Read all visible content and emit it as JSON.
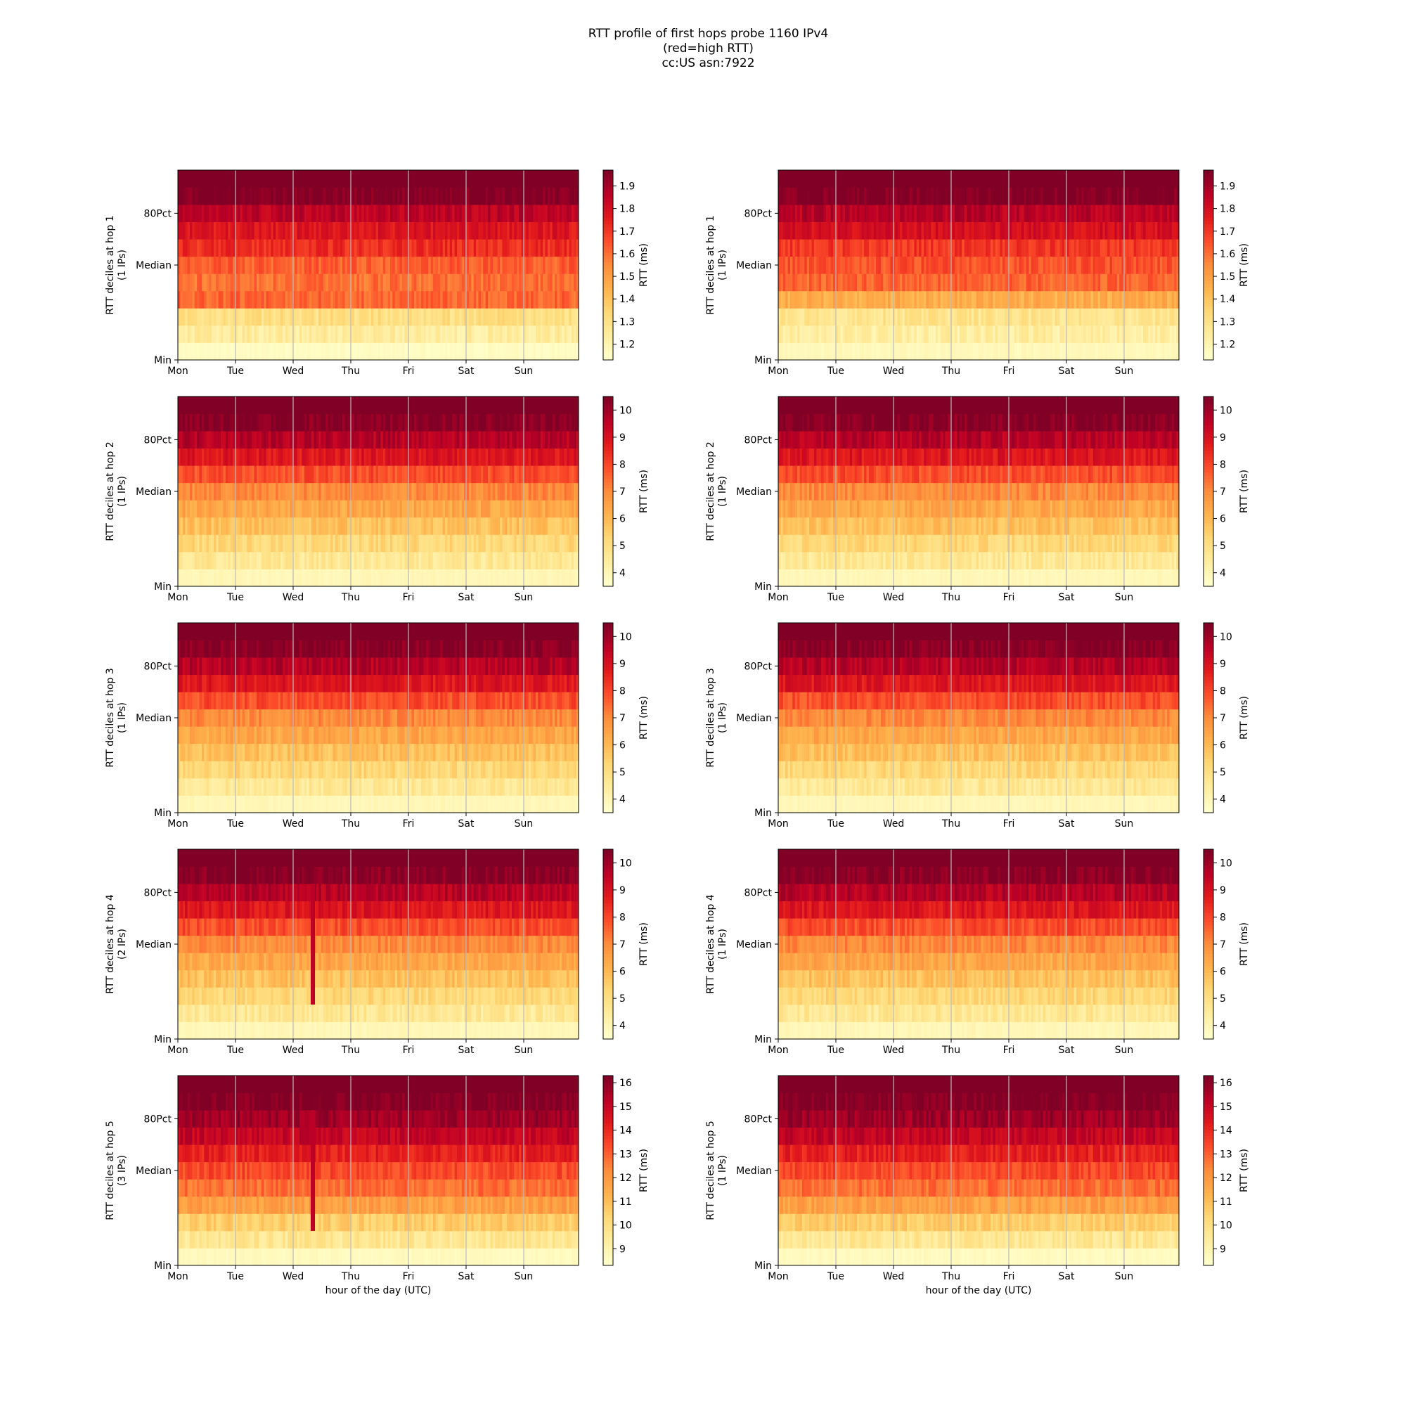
{
  "title": {
    "line1": "RTT profile of first hops probe 1160 IPv4",
    "line2": "(red=high RTT)",
    "line3": "cc:US asn:7922"
  },
  "colors": {
    "colormap": [
      "#ffffcc",
      "#ffeda0",
      "#fed976",
      "#feb24c",
      "#fd8d3c",
      "#fc4e2a",
      "#e31a1c",
      "#bd0026",
      "#800026"
    ],
    "axes": "#000000",
    "gridline": "#bbbbbb"
  },
  "chart_data": [
    {
      "type": "heatmap",
      "ylabel": "RTT deciles at hop 1",
      "ylabel2": "(1 IPs)",
      "colorbar_label": "RTT (ms)",
      "vmin": 1.13,
      "vmax": 1.97,
      "colorbar_ticks": [
        "1.2",
        "1.3",
        "1.4",
        "1.5",
        "1.6",
        "1.7",
        "1.8",
        "1.9"
      ],
      "xticks": [
        "Mon",
        "Tue",
        "Wed",
        "Thu",
        "Fri",
        "Sat",
        "Sun"
      ],
      "yticks": [
        "Min",
        "Median",
        "80Pct"
      ],
      "xlabel": "",
      "decile_values": [
        1.15,
        1.24,
        1.31,
        1.62,
        1.6,
        1.63,
        1.72,
        1.78,
        1.86,
        1.97
      ]
    },
    {
      "type": "heatmap",
      "ylabel": "RTT deciles at hop 1",
      "ylabel2": "(1 IPs)",
      "colorbar_label": "RTT (ms)",
      "vmin": 1.13,
      "vmax": 1.97,
      "colorbar_ticks": [
        "1.2",
        "1.3",
        "1.4",
        "1.5",
        "1.6",
        "1.7",
        "1.8",
        "1.9"
      ],
      "xticks": [
        "Mon",
        "Tue",
        "Wed",
        "Thu",
        "Fri",
        "Sat",
        "Sun"
      ],
      "yticks": [
        "Min",
        "Median",
        "80Pct"
      ],
      "xlabel": "",
      "decile_values": [
        1.17,
        1.23,
        1.28,
        1.46,
        1.62,
        1.65,
        1.7,
        1.8,
        1.87,
        1.97
      ]
    },
    {
      "type": "heatmap",
      "ylabel": "RTT deciles at hop 2",
      "ylabel2": "(1 IPs)",
      "colorbar_label": "RTT (ms)",
      "vmin": 3.5,
      "vmax": 10.5,
      "colorbar_ticks": [
        "4",
        "5",
        "6",
        "7",
        "8",
        "9",
        "10"
      ],
      "xticks": [
        "Mon",
        "Tue",
        "Wed",
        "Thu",
        "Fri",
        "Sat",
        "Sun"
      ],
      "yticks": [
        "Min",
        "Median",
        "80Pct"
      ],
      "xlabel": "",
      "decile_values": [
        3.9,
        4.6,
        5.2,
        5.8,
        6.4,
        7.0,
        7.9,
        8.9,
        9.7,
        10.4
      ]
    },
    {
      "type": "heatmap",
      "ylabel": "RTT deciles at hop 2",
      "ylabel2": "(1 IPs)",
      "colorbar_label": "RTT (ms)",
      "vmin": 3.5,
      "vmax": 10.5,
      "colorbar_ticks": [
        "4",
        "5",
        "6",
        "7",
        "8",
        "9",
        "10"
      ],
      "xticks": [
        "Mon",
        "Tue",
        "Wed",
        "Thu",
        "Fri",
        "Sat",
        "Sun"
      ],
      "yticks": [
        "Min",
        "Median",
        "80Pct"
      ],
      "xlabel": "",
      "decile_values": [
        3.9,
        4.6,
        5.2,
        5.8,
        6.4,
        7.0,
        7.9,
        8.9,
        9.7,
        10.4
      ]
    },
    {
      "type": "heatmap",
      "ylabel": "RTT deciles at hop 3",
      "ylabel2": "(1 IPs)",
      "colorbar_label": "RTT (ms)",
      "vmin": 3.5,
      "vmax": 10.5,
      "colorbar_ticks": [
        "4",
        "5",
        "6",
        "7",
        "8",
        "9",
        "10"
      ],
      "xticks": [
        "Mon",
        "Tue",
        "Wed",
        "Thu",
        "Fri",
        "Sat",
        "Sun"
      ],
      "yticks": [
        "Min",
        "Median",
        "80Pct"
      ],
      "xlabel": "",
      "decile_values": [
        3.9,
        4.6,
        5.2,
        5.8,
        6.4,
        7.0,
        7.9,
        8.9,
        9.7,
        10.4
      ]
    },
    {
      "type": "heatmap",
      "ylabel": "RTT deciles at hop 3",
      "ylabel2": "(1 IPs)",
      "colorbar_label": "RTT (ms)",
      "vmin": 3.5,
      "vmax": 10.5,
      "colorbar_ticks": [
        "4",
        "5",
        "6",
        "7",
        "8",
        "9",
        "10"
      ],
      "xticks": [
        "Mon",
        "Tue",
        "Wed",
        "Thu",
        "Fri",
        "Sat",
        "Sun"
      ],
      "yticks": [
        "Min",
        "Median",
        "80Pct"
      ],
      "xlabel": "",
      "decile_values": [
        3.9,
        4.6,
        5.2,
        5.8,
        6.4,
        7.0,
        7.9,
        8.9,
        9.7,
        10.4
      ]
    },
    {
      "type": "heatmap",
      "ylabel": "RTT deciles at hop 4",
      "ylabel2": "(2 IPs)",
      "colorbar_label": "RTT (ms)",
      "vmin": 3.5,
      "vmax": 10.5,
      "colorbar_ticks": [
        "4",
        "5",
        "6",
        "7",
        "8",
        "9",
        "10"
      ],
      "xticks": [
        "Mon",
        "Tue",
        "Wed",
        "Thu",
        "Fri",
        "Sat",
        "Sun"
      ],
      "yticks": [
        "Min",
        "Median",
        "80Pct"
      ],
      "xlabel": "",
      "decile_values": [
        3.9,
        4.6,
        5.2,
        5.8,
        6.4,
        7.0,
        7.9,
        8.9,
        9.7,
        10.4
      ]
    },
    {
      "type": "heatmap",
      "ylabel": "RTT deciles at hop 4",
      "ylabel2": "(1 IPs)",
      "colorbar_label": "RTT (ms)",
      "vmin": 3.5,
      "vmax": 10.5,
      "colorbar_ticks": [
        "4",
        "5",
        "6",
        "7",
        "8",
        "9",
        "10"
      ],
      "xticks": [
        "Mon",
        "Tue",
        "Wed",
        "Thu",
        "Fri",
        "Sat",
        "Sun"
      ],
      "yticks": [
        "Min",
        "Median",
        "80Pct"
      ],
      "xlabel": "",
      "decile_values": [
        3.9,
        4.6,
        5.2,
        5.8,
        6.4,
        7.0,
        7.9,
        8.9,
        9.7,
        10.4
      ]
    },
    {
      "type": "heatmap",
      "ylabel": "RTT deciles at hop 5",
      "ylabel2": "(3 IPs)",
      "colorbar_label": "RTT (ms)",
      "vmin": 8.3,
      "vmax": 16.3,
      "colorbar_ticks": [
        "9",
        "10",
        "11",
        "12",
        "13",
        "14",
        "15",
        "16"
      ],
      "xticks": [
        "Mon",
        "Tue",
        "Wed",
        "Thu",
        "Fri",
        "Sat",
        "Sun"
      ],
      "yticks": [
        "Min",
        "Median",
        "80Pct"
      ],
      "xlabel": "hour of the day (UTC)",
      "decile_values": [
        8.6,
        9.6,
        10.6,
        11.8,
        12.8,
        13.4,
        14.2,
        15.1,
        15.8,
        16.3
      ]
    },
    {
      "type": "heatmap",
      "ylabel": "RTT deciles at hop 5",
      "ylabel2": "(1 IPs)",
      "colorbar_label": "RTT (ms)",
      "vmin": 8.3,
      "vmax": 16.3,
      "colorbar_ticks": [
        "9",
        "10",
        "11",
        "12",
        "13",
        "14",
        "15",
        "16"
      ],
      "xticks": [
        "Mon",
        "Tue",
        "Wed",
        "Thu",
        "Fri",
        "Sat",
        "Sun"
      ],
      "yticks": [
        "Min",
        "Median",
        "80Pct"
      ],
      "xlabel": "hour of the day (UTC)",
      "decile_values": [
        8.6,
        9.6,
        10.6,
        11.8,
        12.8,
        13.4,
        14.2,
        15.1,
        15.8,
        16.3
      ]
    }
  ]
}
